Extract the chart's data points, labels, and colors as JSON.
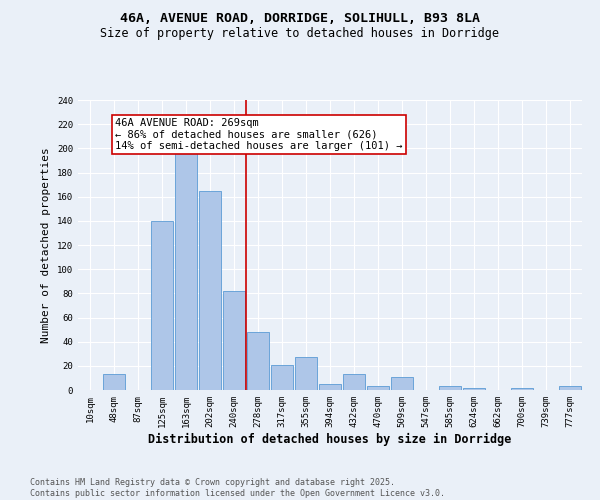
{
  "title": "46A, AVENUE ROAD, DORRIDGE, SOLIHULL, B93 8LA",
  "subtitle": "Size of property relative to detached houses in Dorridge",
  "xlabel": "Distribution of detached houses by size in Dorridge",
  "ylabel": "Number of detached properties",
  "footer": "Contains HM Land Registry data © Crown copyright and database right 2025.\nContains public sector information licensed under the Open Government Licence v3.0.",
  "bin_labels": [
    "10sqm",
    "48sqm",
    "87sqm",
    "125sqm",
    "163sqm",
    "202sqm",
    "240sqm",
    "278sqm",
    "317sqm",
    "355sqm",
    "394sqm",
    "432sqm",
    "470sqm",
    "509sqm",
    "547sqm",
    "585sqm",
    "624sqm",
    "662sqm",
    "700sqm",
    "739sqm",
    "777sqm"
  ],
  "bar_values": [
    0,
    13,
    0,
    140,
    198,
    165,
    82,
    48,
    21,
    27,
    5,
    13,
    3,
    11,
    0,
    3,
    2,
    0,
    2,
    0,
    3
  ],
  "bar_color": "#aec6e8",
  "bar_edge_color": "#5b9bd5",
  "vline_index": 7,
  "vline_color": "#cc0000",
  "annotation_line1": "46A AVENUE ROAD: 269sqm",
  "annotation_line2": "← 86% of detached houses are smaller (626)",
  "annotation_line3": "14% of semi-detached houses are larger (101) →",
  "annotation_box_color": "#ffffff",
  "annotation_box_edge_color": "#cc0000",
  "ylim": [
    0,
    240
  ],
  "yticks": [
    0,
    20,
    40,
    60,
    80,
    100,
    120,
    140,
    160,
    180,
    200,
    220,
    240
  ],
  "bg_color": "#eaf0f8",
  "plot_bg_color": "#eaf0f8",
  "title_fontsize": 9.5,
  "subtitle_fontsize": 8.5,
  "annotation_fontsize": 7.5,
  "ylabel_fontsize": 8,
  "xlabel_fontsize": 8.5,
  "tick_fontsize": 6.5,
  "footer_fontsize": 6.0
}
